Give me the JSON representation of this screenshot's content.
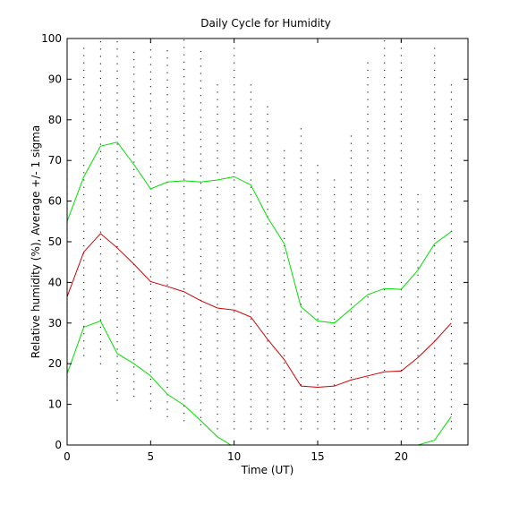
{
  "chart_data": {
    "type": "line",
    "title": "Daily Cycle for Humidity",
    "xlabel": "Time (UT)",
    "ylabel": "Relative humidity (%), Average +/- 1 sigma",
    "xlim": [
      0,
      24
    ],
    "ylim": [
      0,
      100
    ],
    "xticks": [
      0,
      5,
      10,
      15,
      20
    ],
    "yticks": [
      0,
      10,
      20,
      30,
      40,
      50,
      60,
      70,
      80,
      90,
      100
    ],
    "grid": false,
    "legend": "none",
    "colors": {
      "mean": "#cc0000",
      "sigma": "#00dd00",
      "points": "#000000",
      "axis": "#000000"
    },
    "series": [
      {
        "role": "mean",
        "x": [
          0,
          1,
          2,
          3,
          4,
          5,
          6,
          7,
          8,
          9,
          10,
          11,
          12,
          13,
          14,
          15,
          16,
          17,
          18,
          19,
          20,
          21,
          22,
          23
        ],
        "y": [
          36.5,
          47.5,
          52,
          48.5,
          44.5,
          40.2,
          39,
          37.7,
          35.5,
          33.7,
          33.2,
          31.5,
          26,
          21,
          14.5,
          14.2,
          14.5,
          16,
          17,
          18,
          18.2,
          21.5,
          25.5,
          30
        ]
      },
      {
        "role": "plus-sigma",
        "x": [
          0,
          1,
          2,
          3,
          4,
          5,
          6,
          7,
          8,
          9,
          10,
          11,
          12,
          13,
          14,
          15,
          16,
          17,
          18,
          19,
          20,
          21,
          22,
          23
        ],
        "y": [
          55,
          66,
          73.5,
          74.5,
          69,
          63,
          64.7,
          65,
          64.7,
          65.2,
          66,
          64,
          56,
          49.5,
          34,
          30.5,
          30,
          33.5,
          37,
          38.5,
          38.3,
          43,
          49.5,
          52.5
        ]
      },
      {
        "role": "minus-sigma",
        "x": [
          0,
          1,
          2,
          3,
          4,
          5,
          6,
          7,
          8,
          9,
          9.8
        ],
        "y": [
          17.5,
          29,
          30.5,
          22.5,
          20,
          17,
          12.5,
          9.8,
          6,
          2,
          0
        ]
      },
      {
        "role": "minus-sigma-tail",
        "x": [
          21,
          22,
          23
        ],
        "y": [
          0,
          1.2,
          7
        ]
      }
    ],
    "scatter_columns": [
      {
        "x": 0,
        "y_min": 15,
        "y_max": 70,
        "step": 1.8
      },
      {
        "x": 1,
        "y_min": 22,
        "y_max": 98,
        "step": 1.8
      },
      {
        "x": 2,
        "y_min": 20,
        "y_max": 100,
        "step": 1.8
      },
      {
        "x": 3,
        "y_min": 11,
        "y_max": 100,
        "step": 1.8
      },
      {
        "x": 4,
        "y_min": 12,
        "y_max": 98,
        "step": 1.8
      },
      {
        "x": 5,
        "y_min": 9,
        "y_max": 100,
        "step": 1.8
      },
      {
        "x": 6,
        "y_min": 7,
        "y_max": 98,
        "step": 1.8
      },
      {
        "x": 7,
        "y_min": 6,
        "y_max": 100,
        "step": 1.8
      },
      {
        "x": 8,
        "y_min": 5,
        "y_max": 98,
        "step": 1.8
      },
      {
        "x": 9,
        "y_min": 4,
        "y_max": 90,
        "step": 1.8
      },
      {
        "x": 10,
        "y_min": 4,
        "y_max": 98,
        "step": 1.8
      },
      {
        "x": 11,
        "y_min": 4,
        "y_max": 90,
        "step": 1.8
      },
      {
        "x": 12,
        "y_min": 4,
        "y_max": 84,
        "step": 1.8
      },
      {
        "x": 13,
        "y_min": 4,
        "y_max": 74,
        "step": 1.8
      },
      {
        "x": 14,
        "y_min": 4,
        "y_max": 79,
        "step": 1.8
      },
      {
        "x": 15,
        "y_min": 4,
        "y_max": 70,
        "step": 1.8
      },
      {
        "x": 16,
        "y_min": 4,
        "y_max": 66,
        "step": 1.8
      },
      {
        "x": 17,
        "y_min": 4,
        "y_max": 76,
        "step": 1.8
      },
      {
        "x": 18,
        "y_min": 4,
        "y_max": 95,
        "step": 1.8
      },
      {
        "x": 19,
        "y_min": 4,
        "y_max": 100,
        "step": 1.8
      },
      {
        "x": 20,
        "y_min": 4,
        "y_max": 100,
        "step": 1.8
      },
      {
        "x": 21,
        "y_min": 4,
        "y_max": 63,
        "step": 1.8
      },
      {
        "x": 22,
        "y_min": 4,
        "y_max": 98,
        "step": 1.8
      },
      {
        "x": 23,
        "y_min": 4,
        "y_max": 89,
        "step": 1.8
      }
    ]
  }
}
